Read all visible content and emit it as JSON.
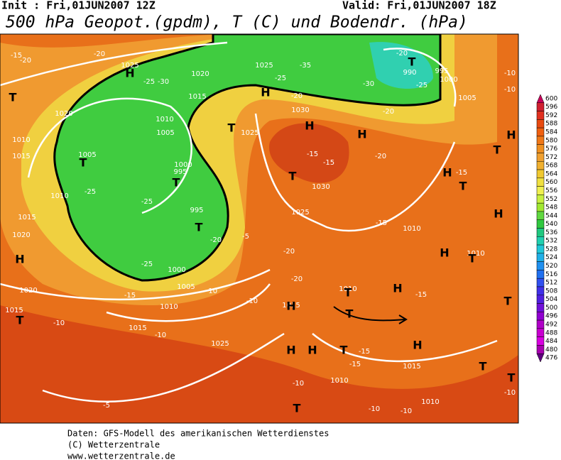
{
  "header": {
    "init": "Init : Fri,01JUN2007 12Z",
    "valid": "Valid: Fri,01JUN2007 18Z",
    "title": "500 hPa Geopot.(gpdm), T (C) und Bodendr. (hPa)"
  },
  "colorbar": {
    "levels": [
      "600",
      "596",
      "592",
      "588",
      "584",
      "580",
      "576",
      "572",
      "568",
      "564",
      "560",
      "556",
      "552",
      "548",
      "544",
      "540",
      "536",
      "532",
      "528",
      "524",
      "520",
      "516",
      "512",
      "508",
      "504",
      "500",
      "496",
      "492",
      "488",
      "484",
      "480",
      "476"
    ]
  },
  "map_labels": [
    "1025",
    "1020",
    "1015",
    "1010",
    "1005",
    "1000",
    "995",
    "995",
    "1000",
    "1005",
    "1010",
    "1015",
    "1020",
    "1015",
    "1015",
    "1020",
    "1010",
    "1015",
    "1020",
    "1005",
    "1010",
    "1030",
    "1025",
    "1025",
    "1030",
    "1010",
    "1010",
    "1010",
    "1015",
    "1015",
    "1025",
    "1010",
    "1010",
    "990",
    "995",
    "1000",
    "1005",
    "1025",
    "-15",
    "-20",
    "-20",
    "-25",
    "-30",
    "-25",
    "-25",
    "-25",
    "-20",
    "-5",
    "-20",
    "-20",
    "-15",
    "-10",
    "-10",
    "-10",
    "-10",
    "-5",
    "-15",
    "-15",
    "-20",
    "-15",
    "-15",
    "-15",
    "-15",
    "-10",
    "-10",
    "-10",
    "-10",
    "-15",
    "-10",
    "-10",
    "-35",
    "-25",
    "-20",
    "-25",
    "-20",
    "-30",
    "-20",
    "H",
    "H",
    "H",
    "H",
    "H",
    "H",
    "H",
    "H",
    "H",
    "H",
    "H",
    "H",
    "H",
    "H",
    "T",
    "T",
    "T",
    "T",
    "T",
    "T",
    "T",
    "T",
    "T",
    "T",
    "T",
    "T",
    "T",
    "T",
    "T",
    "T",
    "T",
    "T"
  ],
  "footer": {
    "source": "Daten: GFS-Modell des amerikanischen Wetterdienstes",
    "copyright": "(C) Wetterzentrale",
    "url": "www.wetterzentrale.de"
  }
}
